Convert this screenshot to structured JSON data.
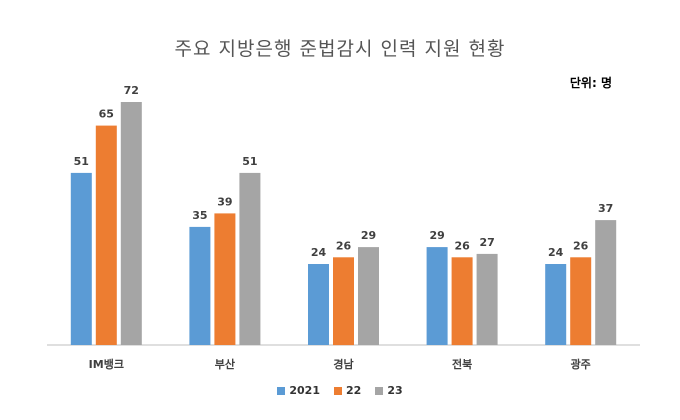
{
  "chart_data": {
    "type": "bar",
    "title": "주요 지방은행 준법감시 인력 지원 현황",
    "unit_note": "단위: 명",
    "categories": [
      "IM뱅크",
      "부산",
      "경남",
      "전북",
      "광주"
    ],
    "series": [
      {
        "name": "2021",
        "color": "#5B9BD5",
        "values": [
          51,
          35,
          24,
          29,
          24
        ]
      },
      {
        "name": "22",
        "color": "#ED7D31",
        "values": [
          65,
          39,
          26,
          26,
          26
        ]
      },
      {
        "name": "23",
        "color": "#A5A5A5",
        "values": [
          72,
          51,
          29,
          27,
          37
        ]
      }
    ],
    "ylim": [
      0,
      72
    ],
    "grid": false,
    "legend_position": "bottom"
  }
}
